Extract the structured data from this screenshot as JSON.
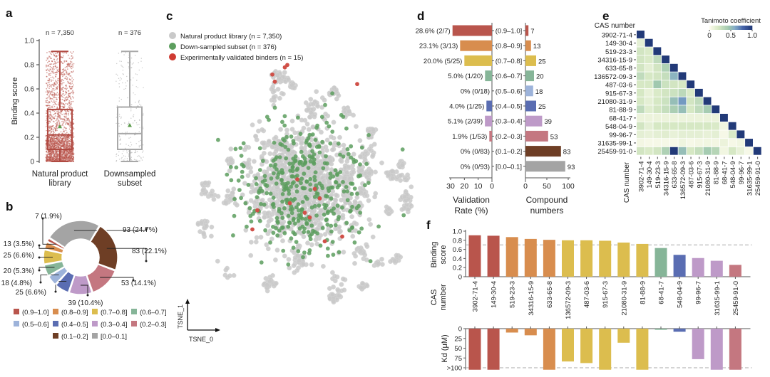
{
  "panel_labels": {
    "a": "a",
    "b": "b",
    "c": "c",
    "d": "d",
    "e": "e",
    "f": "f"
  },
  "colors": {
    "bin_0.9-1.0": "#b9554c",
    "bin_0.8-0.9": "#d88d4e",
    "bin_0.7-0.8": "#dcbd4e",
    "bin_0.6-0.7": "#86b598",
    "bin_0.5-0.6": "#9db3da",
    "bin_0.4-0.5": "#5a6db2",
    "bin_0.3-0.4": "#be9ac8",
    "bin_0.2-0.3": "#c47780",
    "bin_0.1-0.2": "#6e3e25",
    "bin_0.0-0.1": "#a4a4a4",
    "library_points": "#c9c9c9",
    "subset_points": "#5c9e5e",
    "binder_points": "#cf3b32",
    "mean_marker": "#5a9a4a"
  },
  "chart_data": [
    {
      "id": "a",
      "type": "box",
      "title": "",
      "ylabel": "Binding score",
      "ylim": [
        0,
        1.0
      ],
      "yticks": [
        "0",
        "0.2",
        "0.4",
        "0.6",
        "0.8",
        "1.0"
      ],
      "ytick_values": [
        0,
        0.2,
        0.4,
        0.6,
        0.8,
        1.0
      ],
      "groups": [
        {
          "label_lines": [
            "Natural product",
            "library"
          ],
          "n_label": "n = 7,350",
          "min": 0.0,
          "q1": 0.1,
          "median": 0.22,
          "q3": 0.43,
          "max": 0.91,
          "mean": 0.29,
          "color": "#b9554c"
        },
        {
          "label_lines": [
            "Downsampled",
            "subset"
          ],
          "n_label": "n = 376",
          "min": 0.0,
          "q1": 0.1,
          "median": 0.23,
          "q3": 0.45,
          "max": 0.91,
          "mean": 0.3,
          "color": "#a8a8a8"
        }
      ]
    },
    {
      "id": "b",
      "type": "pie",
      "donut": true,
      "slices": [
        {
          "label": "[0.0–0.1]",
          "value": 93,
          "text": "93 (24.7%)",
          "color": "#a4a4a4"
        },
        {
          "label": "(0.1–0.2]",
          "value": 83,
          "text": "83 (22.1%)",
          "color": "#6e3e25"
        },
        {
          "label": "(0.2–0.3]",
          "value": 53,
          "text": "53 (14.1%)",
          "color": "#c47780"
        },
        {
          "label": "(0.3–0.4]",
          "value": 39,
          "text": "39 (10.4%)",
          "color": "#be9ac8"
        },
        {
          "label": "(0.4–0.5]",
          "value": 25,
          "text": "25 (6.6%)",
          "color": "#5a6db2"
        },
        {
          "label": "(0.5–0.6]",
          "value": 18,
          "text": "18 (4.8%)",
          "color": "#9db3da"
        },
        {
          "label": "(0.6–0.7]",
          "value": 20,
          "text": "20 (5.3%)",
          "color": "#86b598"
        },
        {
          "label": "(0.7–0.8]",
          "value": 25,
          "text": "25 (6.6%)",
          "color": "#dcbd4e"
        },
        {
          "label": "(0.8–0.9]",
          "value": 13,
          "text": "13 (3.5%)",
          "color": "#d88d4e"
        },
        {
          "label": "(0.9–1.0]",
          "value": 7,
          "text": "7 (1.9%)",
          "color": "#b9554c"
        }
      ],
      "legend_order": [
        "(0.9–1.0]",
        "(0.8–0.9]",
        "(0.7–0.8]",
        "(0.6–0.7]",
        "(0.5–0.6]",
        "(0.4–0.5]",
        "(0.3–0.4]",
        "(0.2–0.3]",
        "(0.1–0.2]",
        "[0.0–0.1]"
      ],
      "legend_placement": "bottom"
    },
    {
      "id": "c",
      "type": "scatter",
      "xlabel": "TSNE_0",
      "ylabel": "TSNE_1",
      "legend": [
        {
          "label": "Natural product library (n = 7,350)",
          "color": "#c9c9c9"
        },
        {
          "label": "Down-sampled subset (n = 376)",
          "color": "#5c9e5e"
        },
        {
          "label": "Experimentally validated binders (n = 15)",
          "color": "#cf3b32"
        }
      ],
      "legend_placement": "top-left",
      "binders_xy_normalized": [
        [
          0.47,
          0.02
        ],
        [
          0.48,
          0.01
        ],
        [
          0.42,
          0.05
        ],
        [
          0.43,
          0.08
        ],
        [
          0.76,
          0.09
        ],
        [
          0.52,
          0.49
        ],
        [
          0.59,
          0.53
        ],
        [
          0.61,
          0.57
        ],
        [
          0.49,
          0.59
        ],
        [
          0.55,
          0.63
        ],
        [
          0.57,
          0.65
        ],
        [
          0.36,
          0.62
        ],
        [
          0.34,
          0.7
        ],
        [
          0.7,
          0.73
        ],
        [
          0.63,
          0.75
        ]
      ],
      "note": "background library and subset points are a dense cloud; positions approximated"
    },
    {
      "id": "d",
      "type": "bar",
      "orientation": "horizontal",
      "categories": [
        "(0.9–1.0]",
        "(0.8–0.9]",
        "(0.7–0.8]",
        "(0.6–0.7]",
        "(0.5–0.6]",
        "(0.4–0.5]",
        "(0.3–0.4]",
        "(0.2–0.3]",
        "(0.1–0.2]",
        "[0.0–0.1]"
      ],
      "series": [
        {
          "name": "Validation Rate (%)",
          "values": [
            28.6,
            23.1,
            20.0,
            5.0,
            0,
            4.0,
            5.1,
            1.9,
            0,
            0
          ],
          "labels": [
            "28.6% (2/7)",
            "23.1% (3/13)",
            "20.0% (5/25)",
            "5.0% (1/20)",
            "0% (0/18)",
            "4.0% (1/25)",
            "5.1% (2/39)",
            "1.9% (1/53)",
            "0% (0/83)",
            "0% (0/93)"
          ]
        },
        {
          "name": "Compound numbers",
          "values": [
            7,
            13,
            25,
            20,
            18,
            25,
            39,
            53,
            83,
            93
          ],
          "labels": [
            "7",
            "13",
            "25",
            "20",
            "18",
            "25",
            "39",
            "53",
            "83",
            "93"
          ]
        }
      ],
      "colors": [
        "#b9554c",
        "#d88d4e",
        "#dcbd4e",
        "#86b598",
        "#9db3da",
        "#5a6db2",
        "#be9ac8",
        "#c47780",
        "#6e3e25",
        "#a4a4a4"
      ],
      "left_axis": {
        "label_lines": [
          "Validation",
          "Rate (%)"
        ],
        "xlim": [
          30,
          0
        ],
        "ticks": [
          "30",
          "20",
          "10",
          "0"
        ],
        "tick_values": [
          30,
          20,
          10,
          0
        ]
      },
      "right_axis": {
        "label_lines": [
          "Compound",
          "numbers"
        ],
        "xlim": [
          0,
          100
        ],
        "ticks": [
          "0",
          "50",
          "100"
        ],
        "tick_values": [
          0,
          50,
          100
        ]
      }
    },
    {
      "id": "e",
      "type": "heatmap",
      "title": "",
      "ylabel": "CAS number",
      "xlabel": "CAS number",
      "colorbar": {
        "label": "Tanimoto coefficient",
        "ticks": [
          "0",
          "0.5",
          "1.0"
        ],
        "tick_values": [
          0,
          0.5,
          1.0
        ],
        "range": [
          0,
          1.0
        ]
      },
      "labels": [
        "3902-71-4",
        "149-30-4",
        "519-23-3",
        "34316-15-9",
        "633-65-8",
        "136572-09-3",
        "487-03-6",
        "915-67-3",
        "21080-31-9",
        "81-88-9",
        "68-41-7",
        "548-04-9",
        "99-96-7",
        "31635-99-1",
        "25459-91-0"
      ],
      "lower_triangle": [
        [
          1.0
        ],
        [
          0.12,
          1.0
        ],
        [
          0.22,
          0.18,
          1.0
        ],
        [
          0.22,
          0.18,
          0.3,
          1.0
        ],
        [
          0.22,
          0.12,
          0.22,
          0.38,
          1.0
        ],
        [
          0.3,
          0.2,
          0.22,
          0.28,
          0.55,
          1.0
        ],
        [
          0.2,
          0.2,
          0.45,
          0.25,
          0.22,
          0.2,
          1.0
        ],
        [
          0.2,
          0.1,
          0.18,
          0.22,
          0.25,
          0.32,
          0.18,
          1.0
        ],
        [
          0.2,
          0.12,
          0.2,
          0.25,
          0.5,
          0.65,
          0.22,
          0.3,
          1.0
        ],
        [
          0.3,
          0.15,
          0.22,
          0.28,
          0.4,
          0.5,
          0.2,
          0.3,
          0.42,
          1.0
        ],
        [
          0.08,
          0.08,
          0.08,
          0.08,
          0.08,
          0.08,
          0.08,
          0.08,
          0.08,
          0.08,
          1.0
        ],
        [
          0.22,
          0.12,
          0.2,
          0.2,
          0.2,
          0.2,
          0.2,
          0.2,
          0.2,
          0.18,
          0.05,
          1.0
        ],
        [
          0.12,
          0.1,
          0.12,
          0.14,
          0.1,
          0.12,
          0.12,
          0.12,
          0.1,
          0.12,
          0.02,
          0.18,
          1.0
        ],
        [
          0.04,
          0.02,
          0.02,
          0.02,
          0.02,
          0.06,
          0.02,
          0.04,
          0.05,
          0.04,
          0.08,
          0.02,
          0.05,
          1.0
        ],
        [
          0.22,
          0.18,
          0.22,
          0.38,
          1.0,
          0.5,
          0.2,
          0.28,
          0.42,
          0.35,
          0.05,
          0.2,
          0.1,
          0.02,
          1.0
        ]
      ]
    },
    {
      "id": "f",
      "type": "bar",
      "categories": [
        "3902-71-4",
        "149-30-4",
        "519-23-3",
        "34316-15-9",
        "633-65-8",
        "136572-09-3",
        "487-03-6",
        "915-67-3",
        "21080-31-9",
        "81-88-9",
        "68-41-7",
        "548-04-9",
        "99-96-7",
        "31635-99-1",
        "25459-91-0"
      ],
      "colors": [
        "#b9554c",
        "#b9554c",
        "#d88d4e",
        "#d88d4e",
        "#d88d4e",
        "#dcbd4e",
        "#dcbd4e",
        "#dcbd4e",
        "#dcbd4e",
        "#dcbd4e",
        "#86b598",
        "#5a6db2",
        "#be9ac8",
        "#be9ac8",
        "#c47780"
      ],
      "xlabel_lines": [
        "CAS",
        "number"
      ],
      "top": {
        "ylabel_lines": [
          "Binding",
          "score"
        ],
        "values": [
          0.91,
          0.9,
          0.87,
          0.83,
          0.81,
          0.8,
          0.8,
          0.79,
          0.75,
          0.72,
          0.63,
          0.48,
          0.41,
          0.35,
          0.26
        ],
        "ylim": [
          0,
          1.0
        ],
        "yticks": [
          "0",
          "0.2",
          "0.4",
          "0.6",
          "0.8",
          "1.0"
        ],
        "ytick_values": [
          0,
          0.2,
          0.4,
          0.6,
          0.8,
          1.0
        ],
        "threshold": 0.7
      },
      "bottom": {
        "ylabel": "Kd (μM)",
        "values": [
          105,
          105,
          10,
          17,
          105,
          84,
          88,
          105,
          36,
          105,
          3,
          8,
          78,
          105,
          105
        ],
        "ylim": [
          0,
          105
        ],
        "yticks": [
          "0",
          "25",
          "50",
          "75",
          ">100"
        ],
        "ytick_values": [
          0,
          25,
          50,
          75,
          100
        ],
        "threshold": 100
      }
    }
  ]
}
